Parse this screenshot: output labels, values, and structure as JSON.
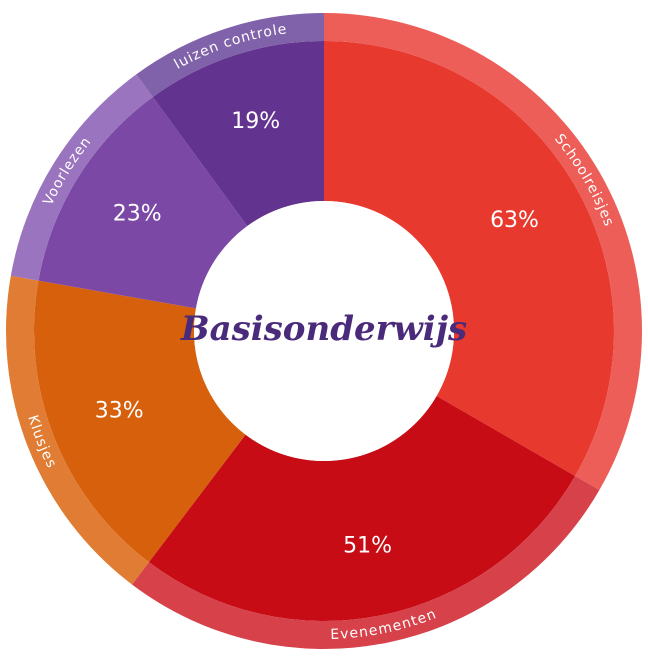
{
  "chart_data": {
    "type": "pie",
    "donut": true,
    "center_label": "Basisonderwijs",
    "categories": [
      "Schoolreisjes",
      "Evenementen",
      "Klusjes",
      "Voorlezen",
      "luizen controle"
    ],
    "values": [
      63,
      51,
      33,
      23,
      19
    ],
    "value_labels": [
      "63%",
      "51%",
      "33%",
      "23%",
      "19%"
    ],
    "colors": [
      "#e8392e",
      "#c70c16",
      "#d6600b",
      "#7b48a6",
      "#62348f"
    ],
    "rim_colors": [
      "#ec5e57",
      "#d6414a",
      "#e07c33",
      "#9a74bf",
      "#8062aa"
    ]
  }
}
